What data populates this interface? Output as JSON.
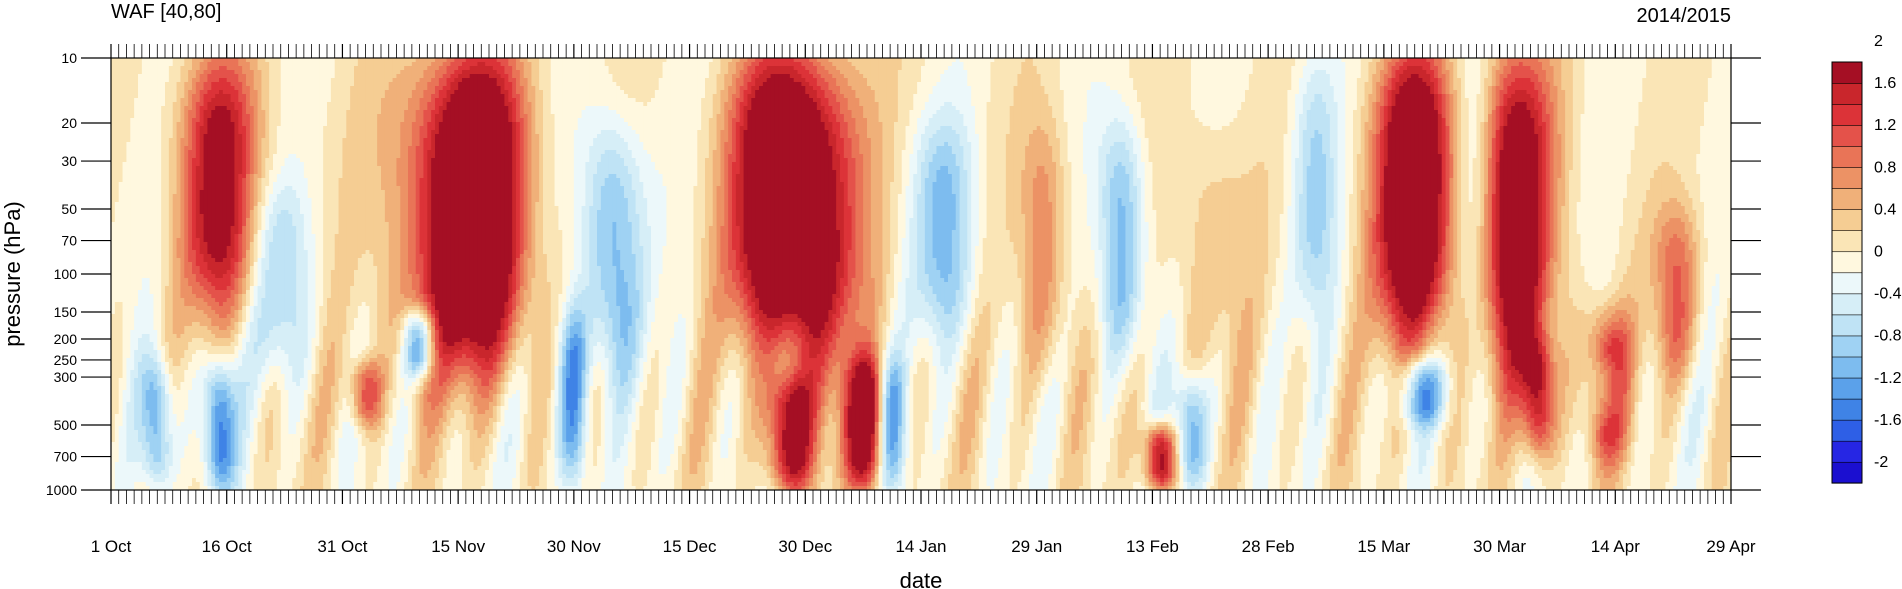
{
  "chart_data": {
    "type": "heatmap",
    "title_left": "WAF [40,80]",
    "title_right": "2014/2015",
    "xlabel": "date",
    "ylabel": "pressure (hPa)",
    "y_scale": "log",
    "y_reversed": true,
    "ylim": [
      1000,
      10
    ],
    "x_ticks": [
      "1 Oct",
      "16 Oct",
      "31 Oct",
      "15 Nov",
      "30 Nov",
      "15 Dec",
      "30 Dec",
      "14 Jan",
      "29 Jan",
      "13 Feb",
      "28 Feb",
      "15 Mar",
      "30 Mar",
      "14 Apr",
      "29 Apr"
    ],
    "x_range_days": [
      0,
      210
    ],
    "y_ticks": [
      10,
      20,
      30,
      50,
      70,
      100,
      150,
      200,
      250,
      300,
      500,
      700,
      1000
    ],
    "colorbar": {
      "levels": [
        -2.2,
        -2.0,
        -1.8,
        -1.6,
        -1.4,
        -1.2,
        -1.0,
        -0.8,
        -0.6,
        -0.4,
        -0.2,
        0,
        0.2,
        0.4,
        0.6,
        0.8,
        1.0,
        1.2,
        1.4,
        1.6,
        1.8,
        2.0,
        2.2
      ],
      "tick_labels": [
        "-2",
        "-1.6",
        "-1.2",
        "-0.8",
        "-0.4",
        "0",
        "0.4",
        "0.8",
        "1.2",
        "1.6",
        "2"
      ],
      "colors": [
        "#1b0fd0",
        "#2626e4",
        "#2e5fe6",
        "#3f83e6",
        "#5ba1ea",
        "#7dbcef",
        "#9fd2f3",
        "#bfe3f5",
        "#d6eef7",
        "#ecf8fa",
        "#fff8df",
        "#fae5b6",
        "#f5cd93",
        "#f0b079",
        "#ec9265",
        "#e97457",
        "#e4524a",
        "#dc3338",
        "#c9262c",
        "#a50f24"
      ]
    },
    "anomalies": [
      {
        "day": 14,
        "top": 10,
        "bottom": 150,
        "amp": 1.8,
        "width": 5
      },
      {
        "day": 22,
        "top": 40,
        "bottom": 300,
        "amp": -0.8,
        "width": 4
      },
      {
        "day": 48,
        "top": 10,
        "bottom": 250,
        "amp": 2.4,
        "width": 6
      },
      {
        "day": 42,
        "top": 10,
        "bottom": 300,
        "amp": 1.0,
        "width": 7
      },
      {
        "day": 65,
        "top": 20,
        "bottom": 300,
        "amp": -1.2,
        "width": 4
      },
      {
        "day": 86,
        "top": 10,
        "bottom": 200,
        "amp": 2.2,
        "width": 6
      },
      {
        "day": 92,
        "top": 10,
        "bottom": 300,
        "amp": 1.4,
        "width": 6
      },
      {
        "day": 108,
        "top": 20,
        "bottom": 200,
        "amp": -1.0,
        "width": 4
      },
      {
        "day": 121,
        "top": 20,
        "bottom": 300,
        "amp": 0.8,
        "width": 3
      },
      {
        "day": 131,
        "top": 20,
        "bottom": 250,
        "amp": -1.2,
        "width": 3
      },
      {
        "day": 142,
        "top": 20,
        "bottom": 250,
        "amp": 0.4,
        "width": 5
      },
      {
        "day": 156,
        "top": 10,
        "bottom": 150,
        "amp": -0.8,
        "width": 3
      },
      {
        "day": 169,
        "top": 10,
        "bottom": 200,
        "amp": 2.6,
        "width": 5
      },
      {
        "day": 182,
        "top": 10,
        "bottom": 300,
        "amp": 2.2,
        "width": 5
      },
      {
        "day": 177,
        "top": 10,
        "bottom": 300,
        "amp": -0.8,
        "width": 3
      },
      {
        "day": 194,
        "top": 150,
        "bottom": 700,
        "amp": 1.4,
        "width": 3
      },
      {
        "day": 203,
        "top": 50,
        "bottom": 300,
        "amp": 1.0,
        "width": 3
      },
      {
        "day": 6,
        "top": 250,
        "bottom": 1000,
        "amp": -1.4,
        "width": 2
      },
      {
        "day": 14,
        "top": 250,
        "bottom": 1000,
        "amp": -1.6,
        "width": 2
      },
      {
        "day": 33,
        "top": 250,
        "bottom": 500,
        "amp": 1.2,
        "width": 2
      },
      {
        "day": 40,
        "top": 150,
        "bottom": 300,
        "amp": -1.6,
        "width": 2
      },
      {
        "day": 60,
        "top": 150,
        "bottom": 1000,
        "amp": -1.4,
        "width": 2
      },
      {
        "day": 88,
        "top": 300,
        "bottom": 1000,
        "amp": 2.0,
        "width": 3
      },
      {
        "day": 98,
        "top": 250,
        "bottom": 1000,
        "amp": 2.2,
        "width": 3
      },
      {
        "day": 101,
        "top": 250,
        "bottom": 1000,
        "amp": -1.6,
        "width": 2
      },
      {
        "day": 140,
        "top": 300,
        "bottom": 1000,
        "amp": -1.2,
        "width": 2
      },
      {
        "day": 136,
        "top": 500,
        "bottom": 1000,
        "amp": 2.0,
        "width": 2
      },
      {
        "day": 170,
        "top": 250,
        "bottom": 500,
        "amp": -1.2,
        "width": 3
      },
      {
        "day": 185,
        "top": 200,
        "bottom": 700,
        "amp": 1.6,
        "width": 2
      },
      {
        "day": 194,
        "top": 250,
        "bottom": 500,
        "amp": -0.8,
        "width": 2
      }
    ]
  }
}
